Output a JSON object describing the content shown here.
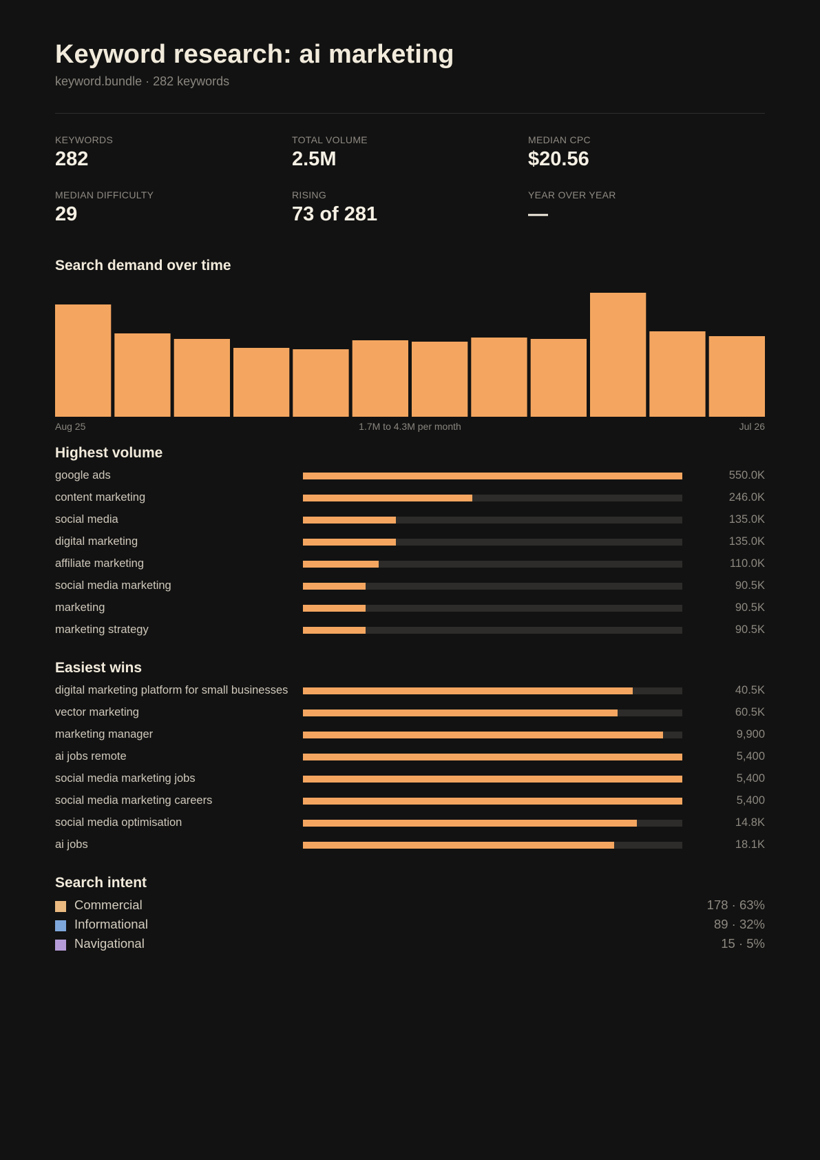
{
  "header": {
    "title": "Keyword research: ai marketing",
    "subtitle": "keyword.bundle · 282 keywords"
  },
  "stats": [
    {
      "label": "KEYWORDS",
      "value": "282"
    },
    {
      "label": "TOTAL VOLUME",
      "value": "2.5M"
    },
    {
      "label": "MEDIAN CPC",
      "value": "$20.56"
    },
    {
      "label": "MEDIAN DIFFICULTY",
      "value": "29"
    },
    {
      "label": "RISING",
      "value": "73 of 281"
    },
    {
      "label": "YEAR OVER YEAR",
      "value": "—"
    }
  ],
  "sections": {
    "demand": "Search demand over time",
    "highest": "Highest volume",
    "easiest": "Easiest wins",
    "intent": "Search intent"
  },
  "demand_axis": {
    "start": "Aug 25",
    "range": "1.7M to 4.3M per month",
    "end": "Jul 26"
  },
  "intent": [
    {
      "name": "Commercial",
      "value": "178 · 63%",
      "color": "#ebba80"
    },
    {
      "name": "Informational",
      "value": "89 · 32%",
      "color": "#7ea7dc"
    },
    {
      "name": "Navigational",
      "value": "15 · 5%",
      "color": "#b59cd8"
    }
  ],
  "chart_data": [
    {
      "type": "bar",
      "title": "Search demand over time",
      "categories": [
        "Aug 25",
        "",
        "",
        "",
        "",
        "",
        "",
        "",
        "",
        "",
        "",
        "Jul 26"
      ],
      "values": [
        3.9,
        2.9,
        2.7,
        2.4,
        2.35,
        2.65,
        2.6,
        2.75,
        2.7,
        4.3,
        2.97,
        2.8
      ],
      "ylim": [
        0,
        4.3
      ],
      "grid": false,
      "color": "#f4a660"
    },
    {
      "type": "bar",
      "title": "Highest volume",
      "categories": [
        "google ads",
        "content marketing",
        "social media",
        "digital marketing",
        "affiliate marketing",
        "social media marketing",
        "marketing",
        "marketing strategy"
      ],
      "value_labels": [
        "550.0K",
        "246.0K",
        "135.0K",
        "135.0K",
        "110.0K",
        "90.5K",
        "90.5K",
        "90.5K"
      ],
      "values": [
        550000,
        246000,
        135000,
        135000,
        110000,
        90500,
        90500,
        90500
      ],
      "fill": [
        1.0,
        0.447,
        0.245,
        0.245,
        0.2,
        0.165,
        0.165,
        0.165
      ],
      "color": "#f4a660"
    },
    {
      "type": "bar",
      "title": "Easiest wins",
      "categories": [
        "digital marketing platform for small businesses",
        "vector marketing",
        "marketing manager",
        "ai jobs remote",
        "social media marketing jobs",
        "social media marketing careers",
        "social media optimisation",
        "ai jobs"
      ],
      "value_labels": [
        "40.5K",
        "60.5K",
        "9,900",
        "5,400",
        "5,400",
        "5,400",
        "14.8K",
        "18.1K"
      ],
      "values": [
        40500,
        60500,
        9900,
        5400,
        5400,
        5400,
        14800,
        18100
      ],
      "fill": [
        0.87,
        0.83,
        0.95,
        1.0,
        1.0,
        1.0,
        0.88,
        0.82
      ],
      "color": "#f4a660"
    }
  ]
}
